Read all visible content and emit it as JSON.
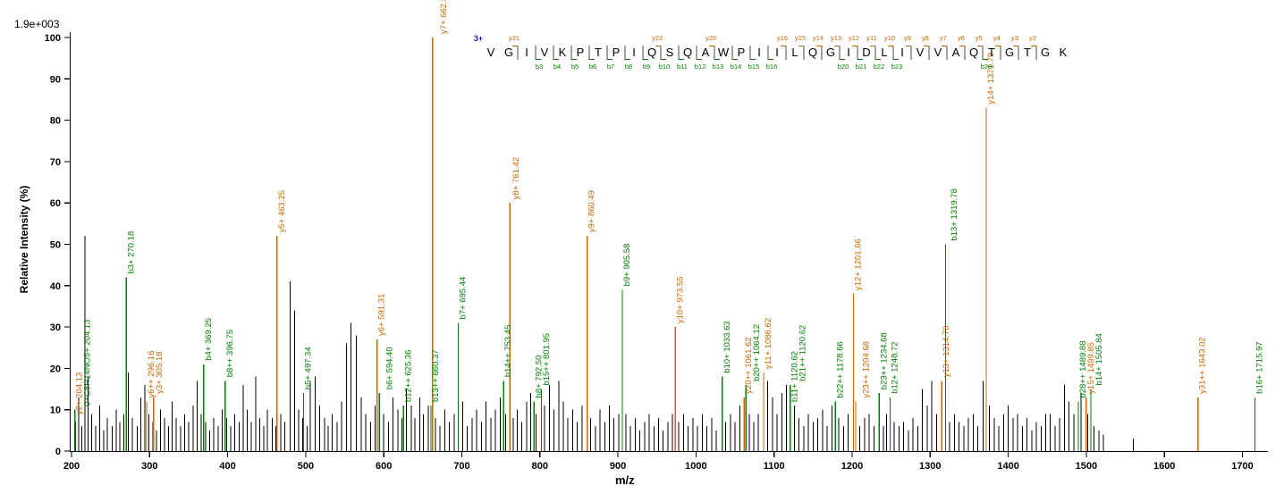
{
  "header": {
    "max_label": "1.9e+003"
  },
  "colors": {
    "y_ion": "#cc6600",
    "b_ion": "#008000",
    "charge": "#2222bb",
    "peak": "#000000",
    "axis": "#000000",
    "sequence_bar": "#444444"
  },
  "axes": {
    "x_label": "m/z",
    "y_label": "Relative  Intensity (%)",
    "x_ticks": [
      200,
      300,
      400,
      500,
      600,
      700,
      800,
      900,
      1000,
      1100,
      1200,
      1300,
      1400,
      1500,
      1600,
      1700
    ],
    "y_ticks": [
      0,
      10,
      20,
      30,
      40,
      50,
      60,
      70,
      80,
      90,
      100
    ],
    "x_range": [
      200,
      1735
    ],
    "y_range": [
      0,
      100
    ]
  },
  "peptide": {
    "charge": "3+",
    "residues": [
      "V",
      "G",
      "I",
      "V",
      "K",
      "P",
      "T",
      "P",
      "I",
      "Q",
      "S",
      "Q",
      "A",
      "W",
      "P",
      "I",
      "I",
      "L",
      "Q",
      "G",
      "I",
      "D",
      "L",
      "I",
      "V",
      "V",
      "A",
      "Q",
      "T",
      "G",
      "T",
      "G",
      "K"
    ],
    "y_ions": [
      {
        "label": "y31",
        "after": 2
      },
      {
        "label": "y23",
        "after": 10
      },
      {
        "label": "y20",
        "after": 13
      },
      {
        "label": "y16",
        "after": 17
      },
      {
        "label": "y15",
        "after": 18
      },
      {
        "label": "y14",
        "after": 19
      },
      {
        "label": "y13",
        "after": 20
      },
      {
        "label": "y12",
        "after": 21
      },
      {
        "label": "y11",
        "after": 22
      },
      {
        "label": "y10",
        "after": 23
      },
      {
        "label": "y9",
        "after": 24
      },
      {
        "label": "y8",
        "after": 25
      },
      {
        "label": "y7",
        "after": 26
      },
      {
        "label": "y6",
        "after": 27
      },
      {
        "label": "y5",
        "after": 28
      },
      {
        "label": "y4",
        "after": 29
      },
      {
        "label": "y3",
        "after": 30
      },
      {
        "label": "y2",
        "after": 31
      }
    ],
    "b_ions": [
      {
        "label": "b3",
        "after": 3
      },
      {
        "label": "b4",
        "after": 4
      },
      {
        "label": "b5",
        "after": 5
      },
      {
        "label": "b6",
        "after": 6
      },
      {
        "label": "b7",
        "after": 7
      },
      {
        "label": "b8",
        "after": 8
      },
      {
        "label": "b9",
        "after": 9
      },
      {
        "label": "b10",
        "after": 10
      },
      {
        "label": "b11",
        "after": 11
      },
      {
        "label": "b12",
        "after": 12
      },
      {
        "label": "b13",
        "after": 13
      },
      {
        "label": "b14",
        "after": 14
      },
      {
        "label": "b15",
        "after": 15
      },
      {
        "label": "b16",
        "after": 16
      },
      {
        "label": "b20",
        "after": 20
      },
      {
        "label": "b21",
        "after": 21
      },
      {
        "label": "b22",
        "after": 22
      },
      {
        "label": "b23",
        "after": 23
      },
      {
        "label": "b28",
        "after": 28
      }
    ]
  },
  "chart_data": {
    "type": "bar",
    "subtype": "ms2-fragmentation-spectrum",
    "xlabel": "m/z",
    "ylabel": "Relative Intensity (%)",
    "xlim": [
      200,
      1735
    ],
    "ylim": [
      0,
      100
    ],
    "base_peak_intensity": "1.9e+003",
    "labeled_peaks": [
      {
        "mz": 204.13,
        "intensity": 8,
        "label": "y2+ 204.13",
        "ion": "y"
      },
      {
        "mz": 204.13,
        "intensity": 10,
        "label": "0+C8H14NO5+ 204.13",
        "ion": "b"
      },
      {
        "mz": 270.18,
        "intensity": 42,
        "label": "b3+ 270.18",
        "ion": "b"
      },
      {
        "mz": 296.16,
        "intensity": 12,
        "label": "y6++ 296.16",
        "ion": "y"
      },
      {
        "mz": 305.18,
        "intensity": 13,
        "label": "y3+ 305.18",
        "ion": "y"
      },
      {
        "mz": 369.25,
        "intensity": 21,
        "label": "b4+ 369.25",
        "ion": "b"
      },
      {
        "mz": 396.75,
        "intensity": 17,
        "label": "b8++ 396.75",
        "ion": "b"
      },
      {
        "mz": 463.25,
        "intensity": 52,
        "label": "y5+ 463.25",
        "ion": "y"
      },
      {
        "mz": 497.34,
        "intensity": 14,
        "label": "b5+ 497.34",
        "ion": "b"
      },
      {
        "mz": 591.31,
        "intensity": 27,
        "label": "y6+ 591.31",
        "ion": "y"
      },
      {
        "mz": 594.4,
        "intensity": 14,
        "label": "b6+ 594.40",
        "ion": "b"
      },
      {
        "mz": 625.36,
        "intensity": 11,
        "label": "b12++ 625.36",
        "ion": "b"
      },
      {
        "mz": 660.37,
        "intensity": 11,
        "label": "b13++ 660.37",
        "ion": "b"
      },
      {
        "mz": 662.36,
        "intensity": 100,
        "label": "y7+ 662.36",
        "ion": "y"
      },
      {
        "mz": 695.44,
        "intensity": 31,
        "label": "b7+ 695.44",
        "ion": "b"
      },
      {
        "mz": 753.45,
        "intensity": 17,
        "label": "b14++ 753.45",
        "ion": "b"
      },
      {
        "mz": 761.42,
        "intensity": 60,
        "label": "y8+ 761.42",
        "ion": "y"
      },
      {
        "mz": 792.5,
        "intensity": 12,
        "label": "b8+ 792.50",
        "ion": "b"
      },
      {
        "mz": 801.95,
        "intensity": 15,
        "label": "b15++ 801.95",
        "ion": "b"
      },
      {
        "mz": 860.49,
        "intensity": 52,
        "label": "y9+ 860.49",
        "ion": "y"
      },
      {
        "mz": 905.58,
        "intensity": 39,
        "label": "b9+ 905.58",
        "ion": "b"
      },
      {
        "mz": 973.55,
        "intensity": 30,
        "label": "y10+ 973.55",
        "ion": "y"
      },
      {
        "mz": 1033.63,
        "intensity": 18,
        "label": "b10+ 1033.63",
        "ion": "b"
      },
      {
        "mz": 1061.62,
        "intensity": 13,
        "label": "y20++ 1061.62",
        "ion": "y"
      },
      {
        "mz": 1064.12,
        "intensity": 16,
        "label": "b20++ 1064.12",
        "ion": "b"
      },
      {
        "mz": 1086.62,
        "intensity": 19,
        "label": "y11+ 1086.62",
        "ion": "y"
      },
      {
        "mz": 1120.62,
        "intensity": 11,
        "label": "b11+ 1120.62",
        "ion": "b"
      },
      {
        "mz": 1120.62,
        "intensity": 16,
        "label": "b21++ 1120.62",
        "ion": "b"
      },
      {
        "mz": 1178.66,
        "intensity": 12,
        "label": "b22++ 1178.66",
        "ion": "b"
      },
      {
        "mz": 1201.66,
        "intensity": 38,
        "label": "y12+ 1201.66",
        "ion": "y"
      },
      {
        "mz": 1204.68,
        "intensity": 12,
        "label": "y23++ 1204.68",
        "ion": "y"
      },
      {
        "mz": 1234.68,
        "intensity": 14,
        "label": "b23++ 1234.68",
        "ion": "b"
      },
      {
        "mz": 1248.72,
        "intensity": 13,
        "label": "b12+ 1248.72",
        "ion": "b"
      },
      {
        "mz": 1314.7,
        "intensity": 17,
        "label": "y13+ 1314.70",
        "ion": "y"
      },
      {
        "mz": 1319.78,
        "intensity": 50,
        "label": "b13+ 1319.78",
        "ion": "b"
      },
      {
        "mz": 1371.79,
        "intensity": 83,
        "label": "y14+ 1371.79",
        "ion": "y"
      },
      {
        "mz": 1489.88,
        "intensity": 12,
        "label": "b28++ 1489.88",
        "ion": "b"
      },
      {
        "mz": 1499.85,
        "intensity": 13,
        "label": "y15+ 1499.85",
        "ion": "y"
      },
      {
        "mz": 1505.84,
        "intensity": 15,
        "label": "b14+ 1505.84",
        "ion": "b"
      },
      {
        "mz": 1643.02,
        "intensity": 13,
        "label": "y31++ 1643.02",
        "ion": "y"
      },
      {
        "mz": 1715.97,
        "intensity": 13,
        "label": "b16+ 1715.97",
        "ion": "b"
      }
    ],
    "background_peaks": [
      [
        205,
        7
      ],
      [
        209,
        13
      ],
      [
        213,
        6
      ],
      [
        217,
        52
      ],
      [
        221,
        18
      ],
      [
        226,
        9
      ],
      [
        231,
        6
      ],
      [
        236,
        11
      ],
      [
        241,
        5
      ],
      [
        246,
        8
      ],
      [
        252,
        6
      ],
      [
        257,
        10
      ],
      [
        262,
        7
      ],
      [
        267,
        9
      ],
      [
        273,
        19
      ],
      [
        278,
        8
      ],
      [
        284,
        6
      ],
      [
        289,
        13
      ],
      [
        294,
        16
      ],
      [
        299,
        9
      ],
      [
        304,
        7
      ],
      [
        309,
        5
      ],
      [
        314,
        10
      ],
      [
        319,
        8
      ],
      [
        324,
        6
      ],
      [
        329,
        12
      ],
      [
        334,
        8
      ],
      [
        340,
        6
      ],
      [
        345,
        9
      ],
      [
        350,
        7
      ],
      [
        356,
        11
      ],
      [
        361,
        17
      ],
      [
        366,
        9
      ],
      [
        372,
        7
      ],
      [
        377,
        5
      ],
      [
        382,
        8
      ],
      [
        388,
        6
      ],
      [
        393,
        10
      ],
      [
        399,
        8
      ],
      [
        404,
        6
      ],
      [
        409,
        9
      ],
      [
        415,
        7
      ],
      [
        420,
        16
      ],
      [
        425,
        10
      ],
      [
        430,
        7
      ],
      [
        436,
        18
      ],
      [
        441,
        8
      ],
      [
        446,
        6
      ],
      [
        451,
        10
      ],
      [
        457,
        8
      ],
      [
        462,
        6
      ],
      [
        468,
        9
      ],
      [
        473,
        7
      ],
      [
        480,
        41
      ],
      [
        486,
        34
      ],
      [
        491,
        10
      ],
      [
        496,
        8
      ],
      [
        502,
        6
      ],
      [
        506,
        17
      ],
      [
        512,
        18
      ],
      [
        518,
        11
      ],
      [
        524,
        8
      ],
      [
        529,
        6
      ],
      [
        534,
        9
      ],
      [
        540,
        7
      ],
      [
        546,
        12
      ],
      [
        552,
        26
      ],
      [
        558,
        31
      ],
      [
        565,
        28
      ],
      [
        571,
        13
      ],
      [
        577,
        9
      ],
      [
        583,
        7
      ],
      [
        589,
        11
      ],
      [
        600,
        9
      ],
      [
        606,
        7
      ],
      [
        612,
        13
      ],
      [
        618,
        10
      ],
      [
        623,
        8
      ],
      [
        629,
        15
      ],
      [
        635,
        11
      ],
      [
        640,
        8
      ],
      [
        646,
        13
      ],
      [
        651,
        9
      ],
      [
        657,
        11
      ],
      [
        666,
        8
      ],
      [
        672,
        6
      ],
      [
        678,
        10
      ],
      [
        684,
        7
      ],
      [
        690,
        9
      ],
      [
        701,
        12
      ],
      [
        707,
        6
      ],
      [
        713,
        8
      ],
      [
        719,
        10
      ],
      [
        725,
        7
      ],
      [
        731,
        12
      ],
      [
        737,
        8
      ],
      [
        743,
        10
      ],
      [
        749,
        13
      ],
      [
        756,
        9
      ],
      [
        766,
        8
      ],
      [
        771,
        10
      ],
      [
        777,
        7
      ],
      [
        783,
        12
      ],
      [
        788,
        14
      ],
      [
        795,
        9
      ],
      [
        806,
        11
      ],
      [
        812,
        16
      ],
      [
        818,
        10
      ],
      [
        824,
        17
      ],
      [
        830,
        12
      ],
      [
        836,
        8
      ],
      [
        842,
        10
      ],
      [
        848,
        7
      ],
      [
        854,
        11
      ],
      [
        865,
        8
      ],
      [
        871,
        6
      ],
      [
        877,
        10
      ],
      [
        883,
        7
      ],
      [
        889,
        11
      ],
      [
        895,
        8
      ],
      [
        901,
        9
      ],
      [
        910,
        9
      ],
      [
        916,
        6
      ],
      [
        922,
        8
      ],
      [
        928,
        5
      ],
      [
        934,
        7
      ],
      [
        940,
        9
      ],
      [
        946,
        6
      ],
      [
        952,
        8
      ],
      [
        958,
        5
      ],
      [
        964,
        7
      ],
      [
        970,
        9
      ],
      [
        978,
        7
      ],
      [
        984,
        9
      ],
      [
        990,
        6
      ],
      [
        996,
        8
      ],
      [
        1002,
        6
      ],
      [
        1008,
        9
      ],
      [
        1014,
        6
      ],
      [
        1020,
        8
      ],
      [
        1026,
        5
      ],
      [
        1038,
        7
      ],
      [
        1044,
        9
      ],
      [
        1050,
        7
      ],
      [
        1056,
        11
      ],
      [
        1068,
        9
      ],
      [
        1074,
        7
      ],
      [
        1080,
        9
      ],
      [
        1092,
        17
      ],
      [
        1098,
        13
      ],
      [
        1104,
        9
      ],
      [
        1110,
        14
      ],
      [
        1116,
        16
      ],
      [
        1126,
        11
      ],
      [
        1132,
        8
      ],
      [
        1138,
        6
      ],
      [
        1144,
        9
      ],
      [
        1150,
        7
      ],
      [
        1156,
        8
      ],
      [
        1162,
        10
      ],
      [
        1168,
        6
      ],
      [
        1174,
        11
      ],
      [
        1183,
        8
      ],
      [
        1189,
        6
      ],
      [
        1195,
        9
      ],
      [
        1210,
        6
      ],
      [
        1216,
        8
      ],
      [
        1222,
        9
      ],
      [
        1228,
        6
      ],
      [
        1240,
        6
      ],
      [
        1244,
        9
      ],
      [
        1254,
        7
      ],
      [
        1260,
        6
      ],
      [
        1266,
        7
      ],
      [
        1272,
        5
      ],
      [
        1278,
        8
      ],
      [
        1284,
        6
      ],
      [
        1290,
        15
      ],
      [
        1296,
        11
      ],
      [
        1302,
        17
      ],
      [
        1308,
        9
      ],
      [
        1325,
        7
      ],
      [
        1331,
        9
      ],
      [
        1337,
        7
      ],
      [
        1343,
        6
      ],
      [
        1349,
        8
      ],
      [
        1355,
        9
      ],
      [
        1361,
        6
      ],
      [
        1368,
        17
      ],
      [
        1376,
        11
      ],
      [
        1382,
        8
      ],
      [
        1388,
        6
      ],
      [
        1394,
        9
      ],
      [
        1400,
        11
      ],
      [
        1406,
        8
      ],
      [
        1412,
        9
      ],
      [
        1418,
        6
      ],
      [
        1424,
        8
      ],
      [
        1430,
        5
      ],
      [
        1436,
        7
      ],
      [
        1442,
        6
      ],
      [
        1448,
        9
      ],
      [
        1454,
        9
      ],
      [
        1460,
        6
      ],
      [
        1466,
        8
      ],
      [
        1472,
        16
      ],
      [
        1478,
        12
      ],
      [
        1484,
        9
      ],
      [
        1493,
        14
      ],
      [
        1502,
        9
      ],
      [
        1510,
        6
      ],
      [
        1516,
        5
      ],
      [
        1522,
        4
      ],
      [
        1560,
        3
      ]
    ]
  }
}
